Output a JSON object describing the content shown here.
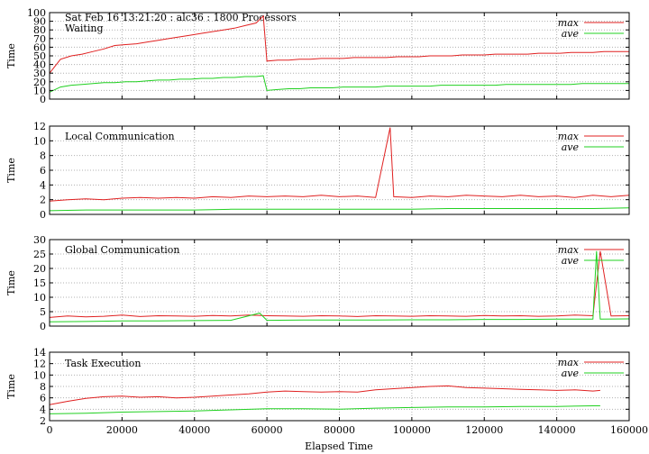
{
  "header": "Sat Feb 16 13:21:20 : alc36 : 1800 Processors",
  "xlabel": "Elapsed Time",
  "colors": {
    "max": "#e02020",
    "ave": "#20d020",
    "grid": "#b0b0b0"
  },
  "chart_data": [
    {
      "type": "line",
      "title": "Waiting",
      "ylabel": "Time",
      "xlim": [
        0,
        160000
      ],
      "ylim": [
        0,
        100
      ],
      "yticks": [
        0,
        10,
        20,
        30,
        40,
        50,
        60,
        70,
        80,
        90,
        100
      ],
      "xticks": [
        0,
        20000,
        40000,
        60000,
        80000,
        100000,
        120000,
        140000,
        160000
      ],
      "series": [
        {
          "name": "max",
          "x": [
            0,
            3000,
            6000,
            9000,
            12000,
            15000,
            18000,
            21000,
            24000,
            27000,
            30000,
            33000,
            36000,
            39000,
            42000,
            45000,
            48000,
            51000,
            54000,
            57000,
            59000,
            60000,
            63000,
            66000,
            69000,
            72000,
            75000,
            78000,
            81000,
            84000,
            87000,
            90000,
            93000,
            96000,
            99000,
            102000,
            105000,
            108000,
            111000,
            114000,
            117000,
            120000,
            123000,
            126000,
            129000,
            132000,
            135000,
            138000,
            141000,
            144000,
            147000,
            150000,
            153000,
            156000,
            160000
          ],
          "y": [
            30,
            46,
            50,
            52,
            55,
            58,
            62,
            63,
            64,
            66,
            68,
            70,
            72,
            74,
            76,
            78,
            80,
            82,
            85,
            88,
            96,
            44,
            45,
            45,
            46,
            46,
            47,
            47,
            47,
            48,
            48,
            48,
            48,
            49,
            49,
            49,
            50,
            50,
            50,
            51,
            51,
            51,
            52,
            52,
            52,
            52,
            53,
            53,
            53,
            54,
            54,
            54,
            55,
            55,
            55
          ]
        },
        {
          "name": "ave",
          "x": [
            0,
            3000,
            6000,
            9000,
            12000,
            15000,
            18000,
            21000,
            24000,
            27000,
            30000,
            33000,
            36000,
            39000,
            42000,
            45000,
            48000,
            51000,
            54000,
            57000,
            59000,
            60000,
            63000,
            66000,
            69000,
            72000,
            75000,
            78000,
            81000,
            84000,
            87000,
            90000,
            93000,
            96000,
            99000,
            102000,
            105000,
            108000,
            111000,
            114000,
            117000,
            120000,
            123000,
            126000,
            129000,
            132000,
            135000,
            138000,
            141000,
            144000,
            147000,
            150000,
            153000,
            156000,
            160000
          ],
          "y": [
            8,
            14,
            16,
            17,
            18,
            19,
            19,
            20,
            20,
            21,
            22,
            22,
            23,
            23,
            24,
            24,
            25,
            25,
            26,
            26,
            27,
            10,
            11,
            12,
            12,
            13,
            13,
            13,
            14,
            14,
            14,
            14,
            15,
            15,
            15,
            15,
            15,
            16,
            16,
            16,
            16,
            16,
            16,
            17,
            17,
            17,
            17,
            17,
            17,
            17,
            18,
            18,
            18,
            18,
            18
          ]
        }
      ]
    },
    {
      "type": "line",
      "title": "Local Communication",
      "ylabel": "Time",
      "xlim": [
        0,
        160000
      ],
      "ylim": [
        0,
        12
      ],
      "yticks": [
        0,
        2,
        4,
        6,
        8,
        10,
        12
      ],
      "xticks": [
        0,
        20000,
        40000,
        60000,
        80000,
        100000,
        120000,
        140000,
        160000
      ],
      "series": [
        {
          "name": "max",
          "x": [
            0,
            5000,
            10000,
            15000,
            20000,
            25000,
            30000,
            35000,
            40000,
            45000,
            50000,
            55000,
            60000,
            65000,
            70000,
            75000,
            80000,
            85000,
            90000,
            94000,
            95000,
            100000,
            105000,
            110000,
            115000,
            120000,
            125000,
            130000,
            135000,
            140000,
            145000,
            150000,
            155000,
            160000
          ],
          "y": [
            1.8,
            2.0,
            2.1,
            2.0,
            2.2,
            2.3,
            2.2,
            2.3,
            2.2,
            2.4,
            2.3,
            2.5,
            2.4,
            2.5,
            2.4,
            2.6,
            2.4,
            2.5,
            2.3,
            11.8,
            2.4,
            2.3,
            2.5,
            2.4,
            2.6,
            2.5,
            2.4,
            2.6,
            2.4,
            2.5,
            2.3,
            2.6,
            2.4,
            2.6
          ]
        },
        {
          "name": "ave",
          "x": [
            0,
            10000,
            20000,
            30000,
            40000,
            50000,
            60000,
            70000,
            80000,
            90000,
            100000,
            110000,
            120000,
            130000,
            140000,
            150000,
            160000
          ],
          "y": [
            0.5,
            0.6,
            0.6,
            0.6,
            0.6,
            0.7,
            0.7,
            0.7,
            0.7,
            0.7,
            0.7,
            0.8,
            0.8,
            0.8,
            0.8,
            0.8,
            0.9
          ]
        }
      ]
    },
    {
      "type": "line",
      "title": "Global Communication",
      "ylabel": "Time",
      "xlim": [
        0,
        160000
      ],
      "ylim": [
        0,
        30
      ],
      "yticks": [
        0,
        5,
        10,
        15,
        20,
        25,
        30
      ],
      "xticks": [
        0,
        20000,
        40000,
        60000,
        80000,
        100000,
        120000,
        140000,
        160000
      ],
      "series": [
        {
          "name": "max",
          "x": [
            0,
            5000,
            10000,
            15000,
            20000,
            25000,
            30000,
            35000,
            40000,
            45000,
            50000,
            55000,
            60000,
            65000,
            70000,
            75000,
            80000,
            85000,
            90000,
            95000,
            100000,
            105000,
            110000,
            115000,
            120000,
            125000,
            130000,
            135000,
            140000,
            145000,
            150000,
            152000,
            155000,
            160000
          ],
          "y": [
            3.0,
            3.5,
            3.2,
            3.4,
            3.8,
            3.3,
            3.6,
            3.5,
            3.4,
            3.7,
            3.5,
            3.8,
            3.6,
            3.5,
            3.4,
            3.6,
            3.5,
            3.3,
            3.6,
            3.5,
            3.4,
            3.6,
            3.5,
            3.4,
            3.7,
            3.5,
            3.6,
            3.4,
            3.5,
            3.8,
            3.6,
            26.0,
            3.5,
            3.6
          ]
        },
        {
          "name": "ave",
          "x": [
            0,
            10000,
            20000,
            30000,
            40000,
            50000,
            58000,
            60000,
            70000,
            80000,
            90000,
            100000,
            110000,
            120000,
            130000,
            140000,
            150000,
            151000,
            152000,
            160000
          ],
          "y": [
            1.5,
            1.6,
            1.8,
            1.8,
            1.9,
            2.0,
            4.5,
            2.0,
            2.1,
            2.1,
            2.1,
            2.2,
            2.2,
            2.3,
            2.3,
            2.4,
            2.4,
            26.0,
            2.4,
            2.5
          ]
        }
      ]
    },
    {
      "type": "line",
      "title": "Task Execution",
      "ylabel": "Time",
      "xlim": [
        0,
        160000
      ],
      "ylim": [
        2,
        14
      ],
      "yticks": [
        2,
        4,
        6,
        8,
        10,
        12,
        14
      ],
      "xticks": [
        0,
        20000,
        40000,
        60000,
        80000,
        100000,
        120000,
        140000,
        160000
      ],
      "series": [
        {
          "name": "max",
          "x": [
            0,
            5000,
            10000,
            15000,
            20000,
            25000,
            30000,
            35000,
            40000,
            45000,
            50000,
            55000,
            60000,
            65000,
            70000,
            75000,
            80000,
            85000,
            90000,
            95000,
            100000,
            105000,
            110000,
            115000,
            120000,
            125000,
            130000,
            135000,
            140000,
            145000,
            150000,
            152000
          ],
          "y": [
            4.8,
            5.4,
            5.9,
            6.2,
            6.3,
            6.1,
            6.2,
            6.0,
            6.1,
            6.3,
            6.5,
            6.7,
            7.0,
            7.2,
            7.1,
            7.0,
            7.1,
            7.0,
            7.4,
            7.6,
            7.8,
            8.0,
            8.1,
            7.8,
            7.7,
            7.6,
            7.5,
            7.4,
            7.3,
            7.4,
            7.2,
            7.3
          ]
        },
        {
          "name": "ave",
          "x": [
            0,
            10000,
            20000,
            30000,
            40000,
            50000,
            60000,
            70000,
            80000,
            90000,
            100000,
            110000,
            120000,
            130000,
            140000,
            150000,
            152000
          ],
          "y": [
            3.2,
            3.3,
            3.5,
            3.6,
            3.7,
            3.9,
            4.1,
            4.1,
            4.0,
            4.2,
            4.3,
            4.4,
            4.4,
            4.5,
            4.5,
            4.6,
            4.6
          ]
        }
      ]
    }
  ]
}
